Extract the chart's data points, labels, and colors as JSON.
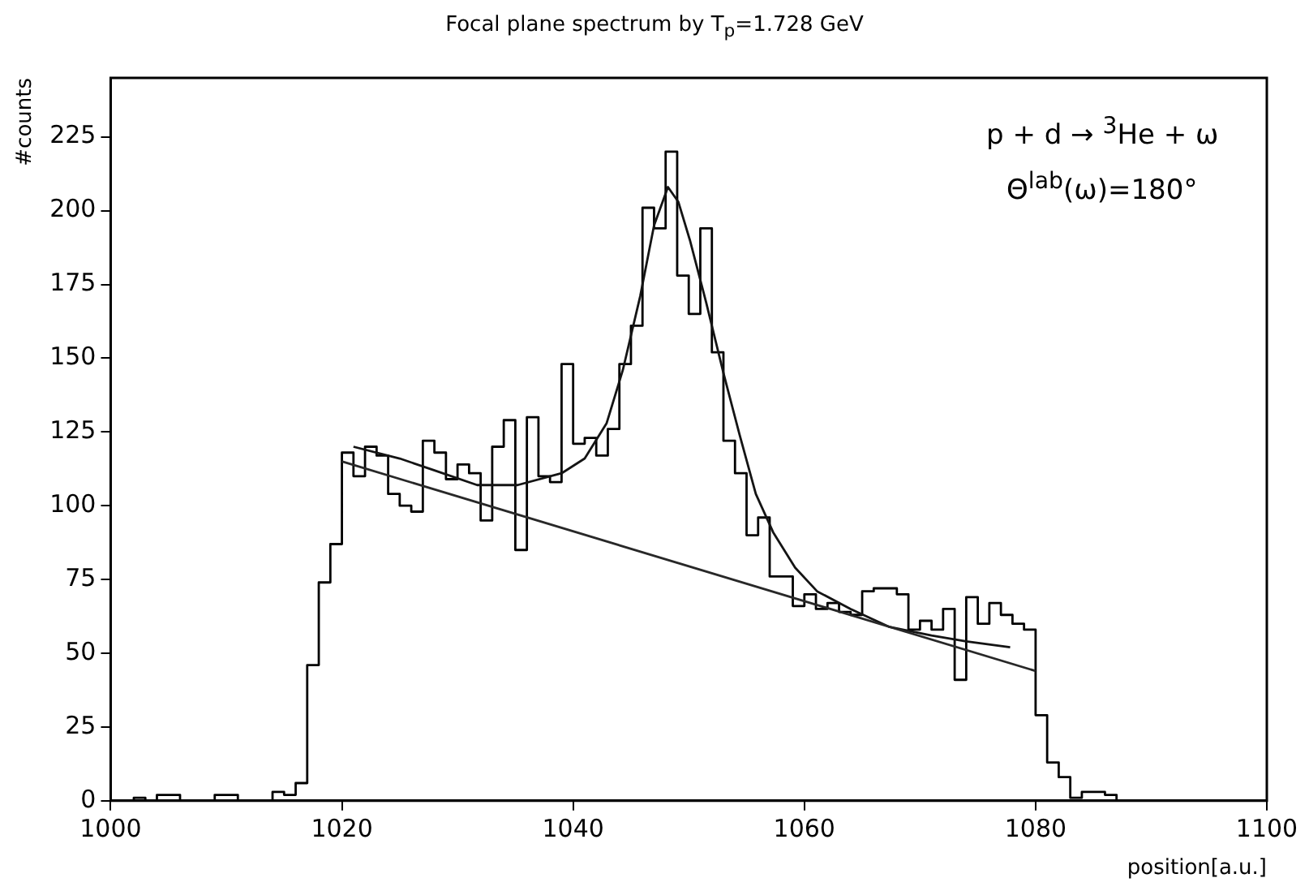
{
  "chart_data": {
    "type": "histogram",
    "title": "Focal plane spectrum by T$_{p}$=1.728 GeV",
    "xlabel": "position[a.u.]",
    "ylabel": "#counts",
    "annotations": [
      "p + d → $^{3}$He + ω",
      "Θ$^{lab}$(ω)=180°"
    ],
    "bins": [
      1000,
      1001,
      1002,
      1003,
      1004,
      1005,
      1006,
      1007,
      1008,
      1009,
      1010,
      1011,
      1012,
      1013,
      1014,
      1015,
      1016,
      1017,
      1018,
      1019,
      1020,
      1021,
      1022,
      1023,
      1024,
      1025,
      1026,
      1027,
      1028,
      1029,
      1030,
      1031,
      1032,
      1033,
      1034,
      1035,
      1036,
      1037,
      1038,
      1039,
      1040,
      1041,
      1042,
      1043,
      1044,
      1045,
      1046,
      1047,
      1048,
      1049,
      1050,
      1051,
      1052,
      1053,
      1054,
      1055,
      1056,
      1057,
      1058,
      1059,
      1060,
      1061,
      1062,
      1063,
      1064,
      1065,
      1066,
      1067,
      1068,
      1069,
      1070,
      1071,
      1072,
      1073,
      1074,
      1075,
      1076,
      1077,
      1078,
      1079,
      1080,
      1081,
      1082,
      1083,
      1084,
      1085,
      1086,
      1087,
      1088,
      1089,
      1090,
      1091,
      1092,
      1093,
      1094,
      1095,
      1096,
      1097,
      1098,
      1099,
      1100
    ],
    "values": [
      0,
      0,
      1,
      0,
      2,
      2,
      0,
      0,
      0,
      2,
      2,
      0,
      0,
      0,
      3,
      2,
      6,
      46,
      74,
      87,
      118,
      110,
      120,
      117,
      104,
      100,
      98,
      122,
      118,
      109,
      114,
      111,
      95,
      120,
      129,
      85,
      130,
      110,
      108,
      148,
      121,
      123,
      117,
      126,
      148,
      161,
      201,
      194,
      220,
      178,
      165,
      194,
      152,
      122,
      111,
      90,
      96,
      76,
      76,
      66,
      70,
      65,
      67,
      64,
      63,
      71,
      72,
      72,
      70,
      58,
      61,
      58,
      65,
      41,
      69,
      60,
      67,
      63,
      60,
      58,
      29,
      13,
      8,
      1,
      3,
      3,
      2,
      0,
      0,
      0,
      0,
      0,
      0,
      0,
      0,
      0,
      0,
      0,
      0,
      0
    ],
    "color": "#000000",
    "series": [
      {
        "type": "line",
        "color": "#141414",
        "x": [
          1021,
          1025,
          1028,
          1031.7,
          1035.2,
          1039,
          1041,
          1042.9,
          1044.3,
          1045.8,
          1047,
          1048.2,
          1049.1,
          1050.1,
          1051.5,
          1053,
          1054.4,
          1055.8,
          1057.3,
          1059.2,
          1061.1,
          1064,
          1067.3,
          1071,
          1074,
          1077.8
        ],
        "values": [
          120,
          116,
          112,
          107,
          107,
          111,
          116,
          128,
          146,
          171,
          195,
          208,
          203,
          190,
          169,
          145,
          124,
          104,
          91,
          79,
          71,
          65,
          59,
          56,
          54,
          52
        ]
      },
      {
        "type": "line",
        "color": "#282828",
        "x": [
          1020,
          1080
        ],
        "values": [
          115,
          44
        ]
      }
    ],
    "xlim": [
      1000,
      1100
    ],
    "xticks": [
      1000,
      1020,
      1040,
      1060,
      1080,
      1100
    ],
    "ylim": [
      0,
      245
    ],
    "yticks": [
      0,
      25,
      50,
      75,
      100,
      125,
      150,
      175,
      200,
      225
    ],
    "grid": false,
    "legend": false,
    "marker": "none",
    "line_style": "solid"
  }
}
